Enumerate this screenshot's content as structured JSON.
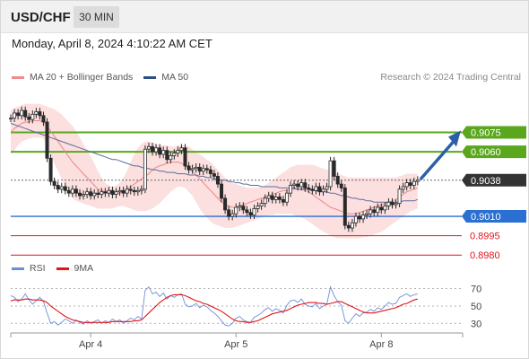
{
  "header": {
    "symbol": "USD/CHF",
    "timeframe": "30 MIN"
  },
  "datetime": "Monday, April 8, 2024 4:10:22 AM CET",
  "legend": {
    "items": [
      {
        "label": "MA 20 + Bollinger Bands",
        "color": "#f28b8b"
      },
      {
        "label": "MA 50",
        "color": "#2c4f86"
      }
    ],
    "credit": "Research © 2024 Trading Central"
  },
  "rsi_legend": {
    "items": [
      {
        "label": "RSI",
        "color": "#6b8fd6"
      },
      {
        "label": "9MA",
        "color": "#e3141b"
      }
    ]
  },
  "colors": {
    "resistance": "#5aa71d",
    "support": "#2a6fd1",
    "target": "#e3141b",
    "current": "#333333",
    "candle": "#2a2a2a",
    "arrow": "#2b5fa8"
  },
  "chart_data": [
    {
      "type": "candlestick",
      "ylim": [
        0.8976,
        0.9108
      ],
      "x_range": [
        0,
        115
      ],
      "xticks": [
        {
          "x": 22,
          "label": "Apr 4"
        },
        {
          "x": 62,
          "label": "Apr 5"
        },
        {
          "x": 102,
          "label": "Apr 8"
        }
      ],
      "levels": [
        {
          "value": 0.9075,
          "label": "0.9075",
          "kind": "resistance"
        },
        {
          "value": 0.906,
          "label": "0.9060",
          "kind": "resistance"
        },
        {
          "value": 0.9038,
          "label": "0.9038",
          "kind": "current"
        },
        {
          "value": 0.901,
          "label": "0.9010",
          "kind": "support"
        },
        {
          "value": 0.8995,
          "label": "0.8995",
          "kind": "target"
        },
        {
          "value": 0.898,
          "label": "0.8980",
          "kind": "target"
        }
      ],
      "close": [
        0.9086,
        0.909,
        0.9088,
        0.9092,
        0.9087,
        0.9085,
        0.9089,
        0.9091,
        0.9088,
        0.9083,
        0.9055,
        0.9037,
        0.9034,
        0.9031,
        0.9033,
        0.903,
        0.9028,
        0.9031,
        0.9028,
        0.9026,
        0.9027,
        0.9029,
        0.9026,
        0.9028,
        0.9027,
        0.9029,
        0.9028,
        0.903,
        0.9027,
        0.9029,
        0.903,
        0.9028,
        0.9031,
        0.903,
        0.9029,
        0.903,
        0.9031,
        0.9062,
        0.9064,
        0.906,
        0.9063,
        0.9058,
        0.9061,
        0.9054,
        0.9057,
        0.9059,
        0.9061,
        0.9063,
        0.9049,
        0.9046,
        0.9047,
        0.9048,
        0.9045,
        0.9047,
        0.9046,
        0.9043,
        0.9041,
        0.9035,
        0.9024,
        0.9015,
        0.901,
        0.9012,
        0.9017,
        0.9018,
        0.9015,
        0.9013,
        0.9011,
        0.9016,
        0.9018,
        0.902,
        0.9024,
        0.9026,
        0.9023,
        0.9025,
        0.9023,
        0.9021,
        0.9028,
        0.9034,
        0.9035,
        0.9033,
        0.9036,
        0.9032,
        0.9031,
        0.903,
        0.9033,
        0.9029,
        0.9031,
        0.9033,
        0.9053,
        0.9041,
        0.9035,
        0.9032,
        0.9003,
        0.9001,
        0.9005,
        0.901,
        0.9008,
        0.9011,
        0.9012,
        0.9015,
        0.9013,
        0.9017,
        0.9015,
        0.9018,
        0.9021,
        0.9019,
        0.902,
        0.9031,
        0.9033,
        0.9036,
        0.9034,
        0.9037,
        0.9038
      ],
      "ma20": [
        0.9075,
        0.9078,
        0.908,
        0.9082,
        0.9083,
        0.9083,
        0.9084,
        0.9084,
        0.9084,
        0.9083,
        0.908,
        0.9076,
        0.9072,
        0.9068,
        0.9064,
        0.906,
        0.9056,
        0.9052,
        0.9049,
        0.9046,
        0.9043,
        0.904,
        0.9037,
        0.9034,
        0.9031,
        0.903,
        0.9029,
        0.9029,
        0.9028,
        0.9028,
        0.9028,
        0.9029,
        0.9031,
        0.9033,
        0.9035,
        0.9037,
        0.9039,
        0.9041,
        0.9043,
        0.9046,
        0.9048,
        0.9049,
        0.905,
        0.9051,
        0.9052,
        0.9052,
        0.9052,
        0.9051,
        0.9049,
        0.9047,
        0.9045,
        0.9042,
        0.9039,
        0.9036,
        0.9033,
        0.903,
        0.9027,
        0.9024,
        0.9021,
        0.9019,
        0.9018,
        0.9017,
        0.9017,
        0.9018,
        0.9019,
        0.902,
        0.9021,
        0.9022,
        0.9023,
        0.9024,
        0.9025,
        0.9026,
        0.9027,
        0.9028,
        0.9029,
        0.903,
        0.903,
        0.9031,
        0.9031,
        0.9031,
        0.9031,
        0.903,
        0.9029,
        0.9027,
        0.9025,
        0.9023,
        0.9021,
        0.9019,
        0.9017,
        0.9016,
        0.9015,
        0.9014,
        0.9013,
        0.9012,
        0.9012,
        0.9012,
        0.9013,
        0.9014,
        0.9015,
        0.9016,
        0.9017,
        0.9018,
        0.9019,
        0.902,
        0.9021,
        0.9022,
        0.9023,
        0.9025,
        0.9027,
        0.9029,
        0.903,
        0.9031,
        0.9032
      ],
      "bb_upper": [
        0.9092,
        0.9094,
        0.9095,
        0.9096,
        0.9097,
        0.9097,
        0.9097,
        0.9097,
        0.9097,
        0.9096,
        0.9095,
        0.9094,
        0.9093,
        0.9091,
        0.9089,
        0.9086,
        0.9083,
        0.908,
        0.9076,
        0.9071,
        0.9066,
        0.9061,
        0.9056,
        0.9051,
        0.9045,
        0.904,
        0.9036,
        0.9034,
        0.9033,
        0.9034,
        0.9036,
        0.904,
        0.9045,
        0.9052,
        0.9058,
        0.9063,
        0.9066,
        0.9068,
        0.9068,
        0.9067,
        0.9066,
        0.9065,
        0.9065,
        0.9065,
        0.9064,
        0.9064,
        0.9065,
        0.9065,
        0.9065,
        0.9064,
        0.9062,
        0.906,
        0.9058,
        0.9056,
        0.9054,
        0.9052,
        0.9049,
        0.9046,
        0.9043,
        0.904,
        0.9038,
        0.9036,
        0.9035,
        0.9034,
        0.9033,
        0.9032,
        0.9032,
        0.9032,
        0.9032,
        0.9033,
        0.9034,
        0.9036,
        0.9038,
        0.904,
        0.9042,
        0.9044,
        0.9046,
        0.9048,
        0.9049,
        0.905,
        0.905,
        0.905,
        0.905,
        0.905,
        0.9049,
        0.9048,
        0.9047,
        0.9046,
        0.9045,
        0.9044,
        0.9043,
        0.9042,
        0.9041,
        0.904,
        0.904,
        0.904,
        0.904,
        0.904,
        0.904,
        0.904,
        0.904,
        0.904,
        0.904,
        0.904,
        0.904,
        0.904,
        0.904,
        0.9041,
        0.9042,
        0.9043,
        0.9043,
        0.9043,
        0.9043
      ],
      "bb_lower": [
        0.9058,
        0.9061,
        0.9065,
        0.9068,
        0.9069,
        0.907,
        0.9071,
        0.9071,
        0.9071,
        0.907,
        0.9065,
        0.9058,
        0.9051,
        0.9045,
        0.9039,
        0.9034,
        0.9029,
        0.9024,
        0.9022,
        0.9021,
        0.902,
        0.9019,
        0.9018,
        0.9017,
        0.9016,
        0.9016,
        0.9016,
        0.9016,
        0.9016,
        0.9017,
        0.9018,
        0.9018,
        0.9017,
        0.9016,
        0.9015,
        0.9014,
        0.9014,
        0.9014,
        0.9015,
        0.9016,
        0.9018,
        0.902,
        0.9023,
        0.9026,
        0.9029,
        0.9031,
        0.9033,
        0.9033,
        0.9032,
        0.9029,
        0.9026,
        0.9021,
        0.9016,
        0.9012,
        0.9009,
        0.9006,
        0.9004,
        0.9003,
        0.9002,
        0.9001,
        0.9001,
        0.9001,
        0.9002,
        0.9003,
        0.9004,
        0.9005,
        0.9006,
        0.9007,
        0.9008,
        0.9009,
        0.901,
        0.9011,
        0.9011,
        0.9012,
        0.9012,
        0.9012,
        0.9012,
        0.9012,
        0.9011,
        0.901,
        0.9009,
        0.9008,
        0.9006,
        0.9004,
        0.9002,
        0.9,
        0.8998,
        0.8997,
        0.8995,
        0.8994,
        0.8993,
        0.8993,
        0.8993,
        0.8993,
        0.8993,
        0.8993,
        0.8993,
        0.8994,
        0.8994,
        0.8995,
        0.8996,
        0.8997,
        0.8998,
        0.9,
        0.9002,
        0.9004,
        0.9006,
        0.9008,
        0.901,
        0.9012,
        0.9014,
        0.9015,
        0.9016
      ],
      "ma50": [
        0.9082,
        0.9081,
        0.908,
        0.9079,
        0.9078,
        0.9077,
        0.9076,
        0.9075,
        0.9074,
        0.9073,
        0.9072,
        0.9071,
        0.907,
        0.9069,
        0.9068,
        0.9067,
        0.9066,
        0.9065,
        0.9064,
        0.9063,
        0.9062,
        0.9061,
        0.906,
        0.9059,
        0.9058,
        0.9057,
        0.9056,
        0.9055,
        0.9054,
        0.9054,
        0.9053,
        0.9052,
        0.9051,
        0.905,
        0.9049,
        0.9049,
        0.9048,
        0.9047,
        0.9047,
        0.9046,
        0.9046,
        0.9045,
        0.9045,
        0.9044,
        0.9044,
        0.9044,
        0.9043,
        0.9043,
        0.9043,
        0.9042,
        0.9042,
        0.9042,
        0.9041,
        0.9041,
        0.904,
        0.904,
        0.9039,
        0.9039,
        0.9038,
        0.9038,
        0.9037,
        0.9037,
        0.9036,
        0.9036,
        0.9035,
        0.9035,
        0.9034,
        0.9034,
        0.9034,
        0.9033,
        0.9033,
        0.9033,
        0.9033,
        0.9033,
        0.9032,
        0.9032,
        0.9032,
        0.9032,
        0.9032,
        0.9031,
        0.9031,
        0.9031,
        0.9031,
        0.903,
        0.903,
        0.9029,
        0.9029,
        0.9029,
        0.9028,
        0.9028,
        0.9027,
        0.9026,
        0.9026,
        0.9025,
        0.9024,
        0.9024,
        0.9023,
        0.9023,
        0.9022,
        0.9022,
        0.9021,
        0.9021,
        0.9021,
        0.9021,
        0.9021,
        0.9021,
        0.9021,
        0.9021,
        0.9022,
        0.9022,
        0.9022,
        0.9022,
        0.9023
      ]
    },
    {
      "type": "line",
      "ylim": [
        22,
        80
      ],
      "yticks": [
        70,
        50,
        30
      ],
      "x_range": [
        0,
        115
      ],
      "series": [
        {
          "name": "RSI",
          "values": [
            62,
            60,
            55,
            58,
            64,
            57,
            52,
            56,
            60,
            55,
            42,
            30,
            32,
            28,
            31,
            35,
            33,
            30,
            34,
            31,
            29,
            33,
            30,
            32,
            34,
            30,
            33,
            31,
            35,
            32,
            34,
            30,
            33,
            36,
            34,
            38,
            35,
            68,
            72,
            64,
            66,
            61,
            65,
            58,
            62,
            60,
            63,
            64,
            52,
            49,
            50,
            53,
            48,
            51,
            49,
            45,
            42,
            38,
            33,
            28,
            27,
            30,
            36,
            38,
            34,
            32,
            31,
            37,
            39,
            42,
            46,
            48,
            44,
            47,
            45,
            42,
            51,
            56,
            57,
            54,
            58,
            52,
            50,
            49,
            53,
            47,
            50,
            52,
            72,
            62,
            55,
            51,
            33,
            30,
            36,
            41,
            38,
            42,
            43,
            46,
            44,
            48,
            46,
            50,
            54,
            52,
            53,
            60,
            62,
            64,
            61,
            63,
            64
          ]
        },
        {
          "name": "9MA",
          "values": [
            56,
            57,
            57,
            57,
            58,
            58,
            57,
            57,
            57,
            56,
            54,
            50,
            47,
            44,
            41,
            38,
            36,
            34,
            33,
            32,
            31,
            31,
            31,
            31,
            31,
            31,
            31,
            31,
            32,
            32,
            32,
            32,
            32,
            32,
            33,
            33,
            34,
            38,
            42,
            46,
            50,
            54,
            57,
            60,
            62,
            63,
            63,
            63,
            62,
            60,
            58,
            56,
            55,
            53,
            52,
            50,
            48,
            46,
            44,
            41,
            38,
            35,
            33,
            32,
            32,
            31,
            31,
            32,
            33,
            35,
            37,
            39,
            41,
            42,
            43,
            44,
            45,
            47,
            49,
            51,
            52,
            53,
            54,
            54,
            54,
            53,
            53,
            52,
            53,
            54,
            55,
            55,
            53,
            51,
            49,
            47,
            45,
            43,
            42,
            42,
            42,
            43,
            44,
            45,
            46,
            47,
            48,
            50,
            52,
            53,
            55,
            57,
            58
          ]
        }
      ],
      "xticks": [
        {
          "x": 22,
          "label": "Apr 4"
        },
        {
          "x": 62,
          "label": "Apr 5"
        },
        {
          "x": 102,
          "label": "Apr 8"
        }
      ]
    }
  ]
}
